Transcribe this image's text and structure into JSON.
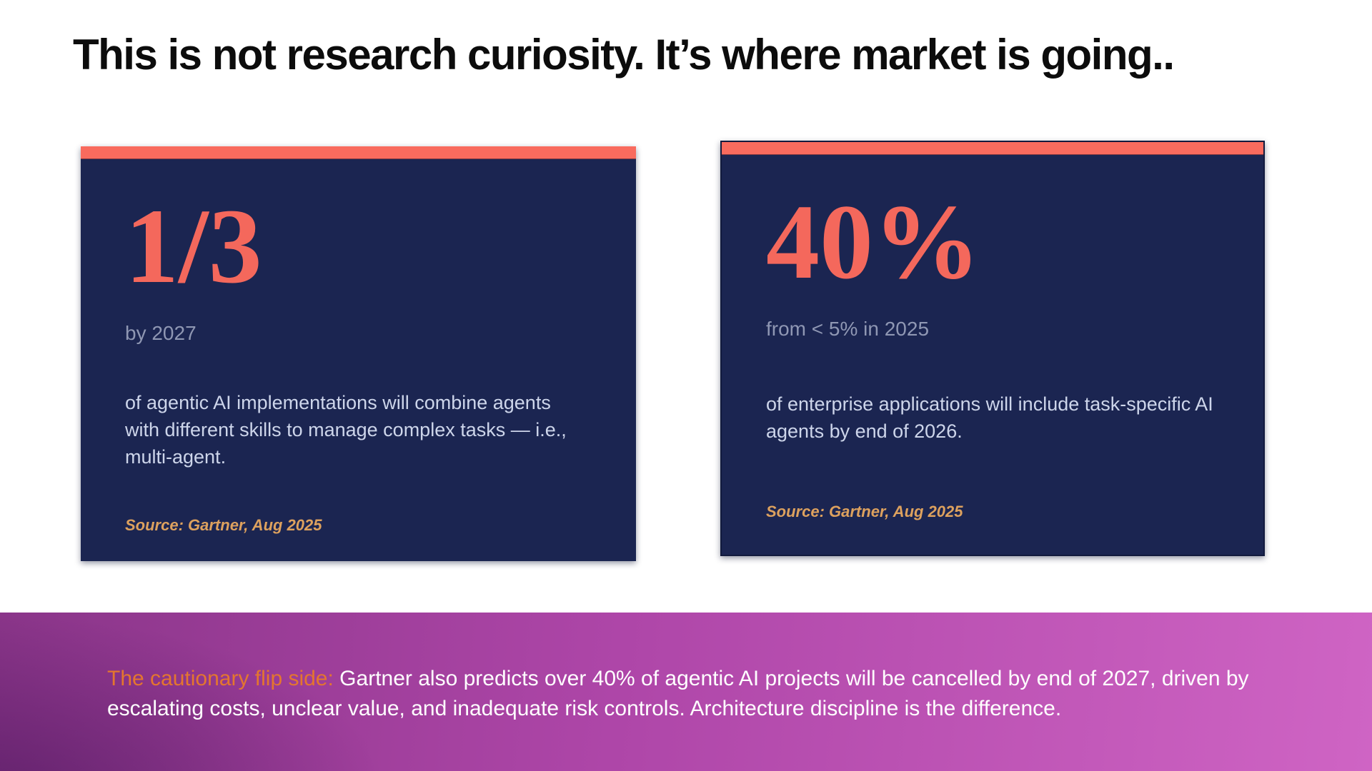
{
  "slide": {
    "title": "This is not research curiosity. It’s where market is going..",
    "cards": [
      {
        "stat": "1/3",
        "qualifier": "by 2027",
        "description": "of agentic AI implementations will combine agents with different skills to manage complex tasks — i.e., multi-agent.",
        "source": "Source: Gartner, Aug 2025"
      },
      {
        "stat": "40%",
        "qualifier": "from < 5% in 2025",
        "description": "of enterprise applications will include task-specific AI agents by end of 2026.",
        "source": "Source: Gartner, Aug 2025"
      }
    ],
    "banner": {
      "highlight": "The cautionary flip side:",
      "text": " Gartner also predicts over 40% of agentic AI projects will be cancelled by end of 2027,  driven by escalating costs, unclear value, and inadequate risk controls. Architecture discipline is the difference."
    },
    "colors": {
      "card_bg": "#1b2551",
      "accent_coral": "#f96b5e",
      "stat_coral": "#f4685c",
      "qualifier_gray": "#8f97b3",
      "body_light": "#cdd5ea",
      "source_orange": "#dda15e",
      "banner_highlight_orange": "#e4762e",
      "banner_purple_dark": "#6d2468",
      "banner_purple_mid": "#ae46a8",
      "banner_purple_light": "#cf64c4"
    }
  }
}
